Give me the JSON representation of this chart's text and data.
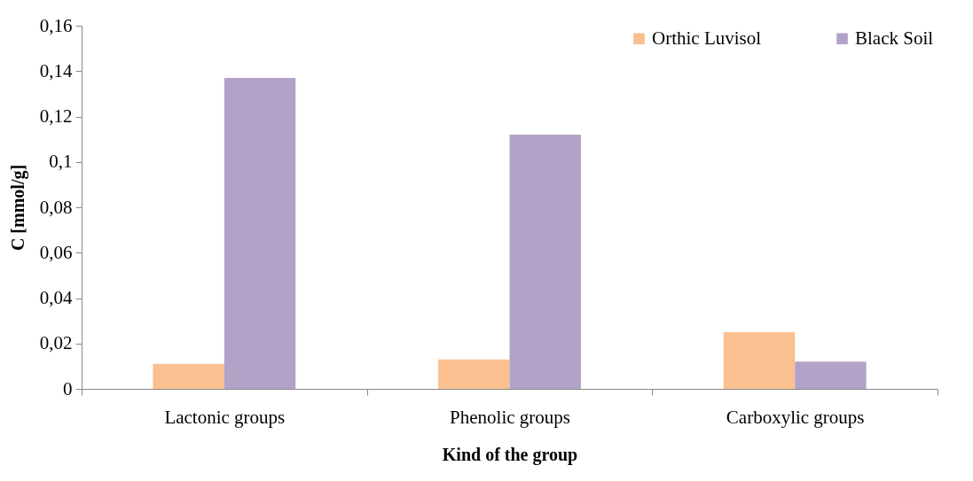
{
  "chart_data": {
    "type": "bar",
    "xlabel": "Kind of the group",
    "ylabel": "C [mmol/g]",
    "categories": [
      "Lactonic groups",
      "Phenolic groups",
      "Carboxylic groups"
    ],
    "series": [
      {
        "name": "Orthic Luvisol",
        "color": "#fac090",
        "values": [
          0.011,
          0.013,
          0.025
        ]
      },
      {
        "name": "Black Soil",
        "color": "#b3a2c7",
        "values": [
          0.137,
          0.112,
          0.012
        ]
      }
    ],
    "ylim": [
      0,
      0.16
    ],
    "yticks": [
      0,
      {
        "value": 0.02,
        "label": "0,02"
      },
      {
        "value": 0.04,
        "label": "0,04"
      },
      {
        "value": 0.06,
        "label": "0,06"
      },
      {
        "value": 0.08,
        "label": "0,08"
      },
      {
        "value": 0.1,
        "label": "0,1"
      },
      {
        "value": 0.12,
        "label": "0,12"
      },
      {
        "value": 0.14,
        "label": "0,14"
      },
      {
        "value": 0.16,
        "label": "0,16"
      }
    ],
    "grid": false,
    "legend": "top right"
  }
}
